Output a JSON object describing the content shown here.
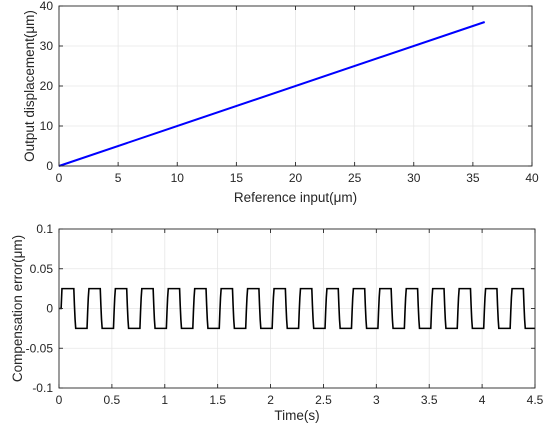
{
  "chart_data": [
    {
      "type": "line",
      "title": "",
      "xlabel": "Reference input(μm)",
      "ylabel": "Output displacement(μm)",
      "xlim": [
        0,
        40
      ],
      "ylim": [
        0,
        40
      ],
      "xticks": [
        0,
        5,
        10,
        15,
        20,
        25,
        30,
        35,
        40
      ],
      "yticks": [
        0,
        10,
        20,
        30,
        40
      ],
      "grid": true,
      "series": [
        {
          "color": "#0000ff",
          "x": [
            0,
            36
          ],
          "y": [
            0,
            36
          ]
        }
      ]
    },
    {
      "type": "line",
      "title": "",
      "xlabel": "Time(s)",
      "ylabel": "Compensation error(μm)",
      "xlim": [
        0,
        4.5
      ],
      "ylim": [
        -0.1,
        0.1
      ],
      "xticks": [
        0,
        0.5,
        1,
        1.5,
        2,
        2.5,
        3,
        3.5,
        4,
        4.5
      ],
      "yticks": [
        -0.1,
        -0.05,
        0,
        0.05,
        0.1
      ],
      "grid": true,
      "series": [
        {
          "color": "#000000",
          "waveform": "square",
          "amplitude": 0.025,
          "period": 0.25,
          "phase_start": 0.0,
          "initial_value": 0,
          "initial_duration": 0.02,
          "duration": 4.5
        }
      ]
    }
  ]
}
